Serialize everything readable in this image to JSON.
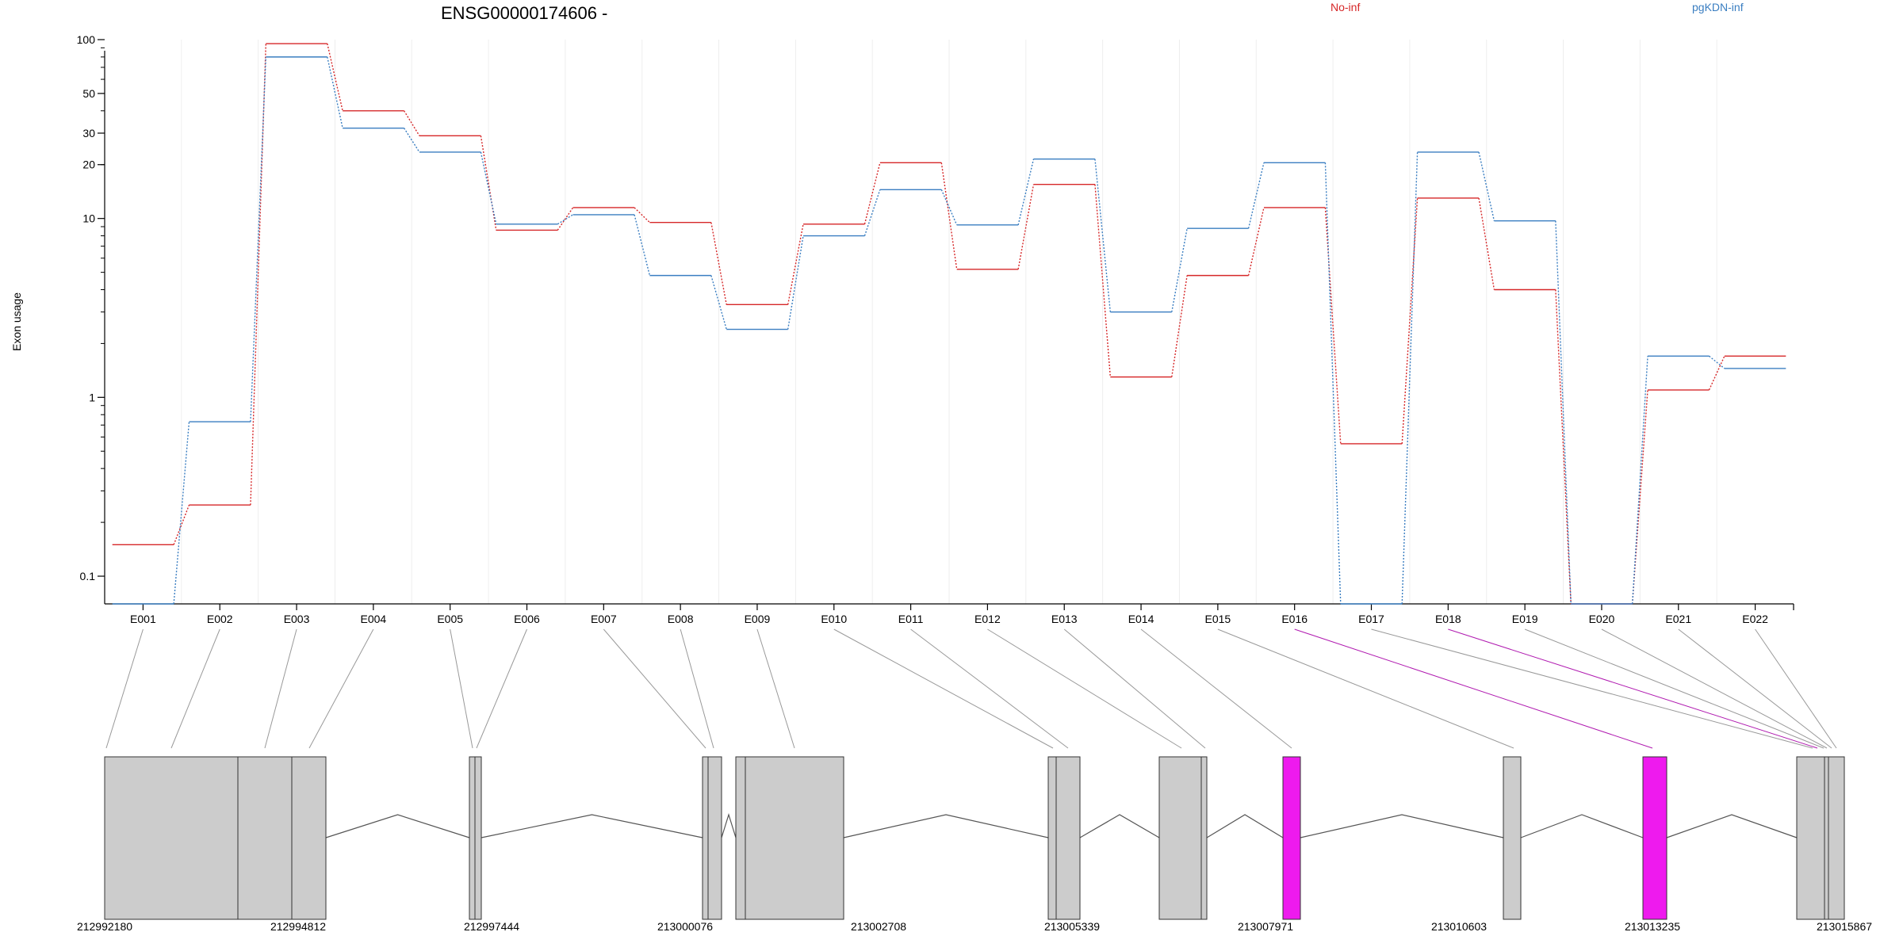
{
  "chart_data": {
    "type": "line",
    "title": "ENSG00000174606 -",
    "ylabel": "Exon usage",
    "yscale": "log",
    "ylim": [
      0.07,
      100
    ],
    "yticks": [
      0.1,
      1,
      10,
      20,
      30,
      50,
      100
    ],
    "ytick_labels": [
      "0.1",
      "1",
      "10",
      "20",
      "30",
      "50",
      "100"
    ],
    "grid": true,
    "legend_position": "top",
    "categories": [
      "E001",
      "E002",
      "E003",
      "E004",
      "E005",
      "E006",
      "E007",
      "E008",
      "E009",
      "E010",
      "E011",
      "E012",
      "E013",
      "E014",
      "E015",
      "E016",
      "E017",
      "E018",
      "E019",
      "E020",
      "E021",
      "E022"
    ],
    "series": [
      {
        "name": "No-inf",
        "color": "#d62728",
        "values": [
          0.15,
          0.25,
          95,
          40,
          29,
          8.6,
          11.5,
          9.5,
          3.3,
          9.3,
          20.5,
          5.2,
          15.5,
          1.3,
          4.8,
          11.5,
          0.55,
          13,
          4.0,
          0.07,
          1.1,
          1.7
        ]
      },
      {
        "name": "pgKDN-inf",
        "color": "#3a7ec1",
        "values": [
          0.07,
          0.73,
          80,
          32,
          23.5,
          9.3,
          10.5,
          4.8,
          2.4,
          8.0,
          14.5,
          9.2,
          21.5,
          3.0,
          8.8,
          20.5,
          0.07,
          23.5,
          9.7,
          0.07,
          1.7,
          1.45
        ]
      }
    ],
    "gene_model": {
      "coordinates": [
        "212992180",
        "212994812",
        "212997444",
        "213000076",
        "213002708",
        "213005339",
        "213007971",
        "213010603",
        "213013235",
        "213015867"
      ],
      "exon_count": 22,
      "highlight_exons": [
        "E016",
        "E018"
      ],
      "highlight_color": "#ee1aee",
      "exon_color": "#cccccc"
    }
  }
}
